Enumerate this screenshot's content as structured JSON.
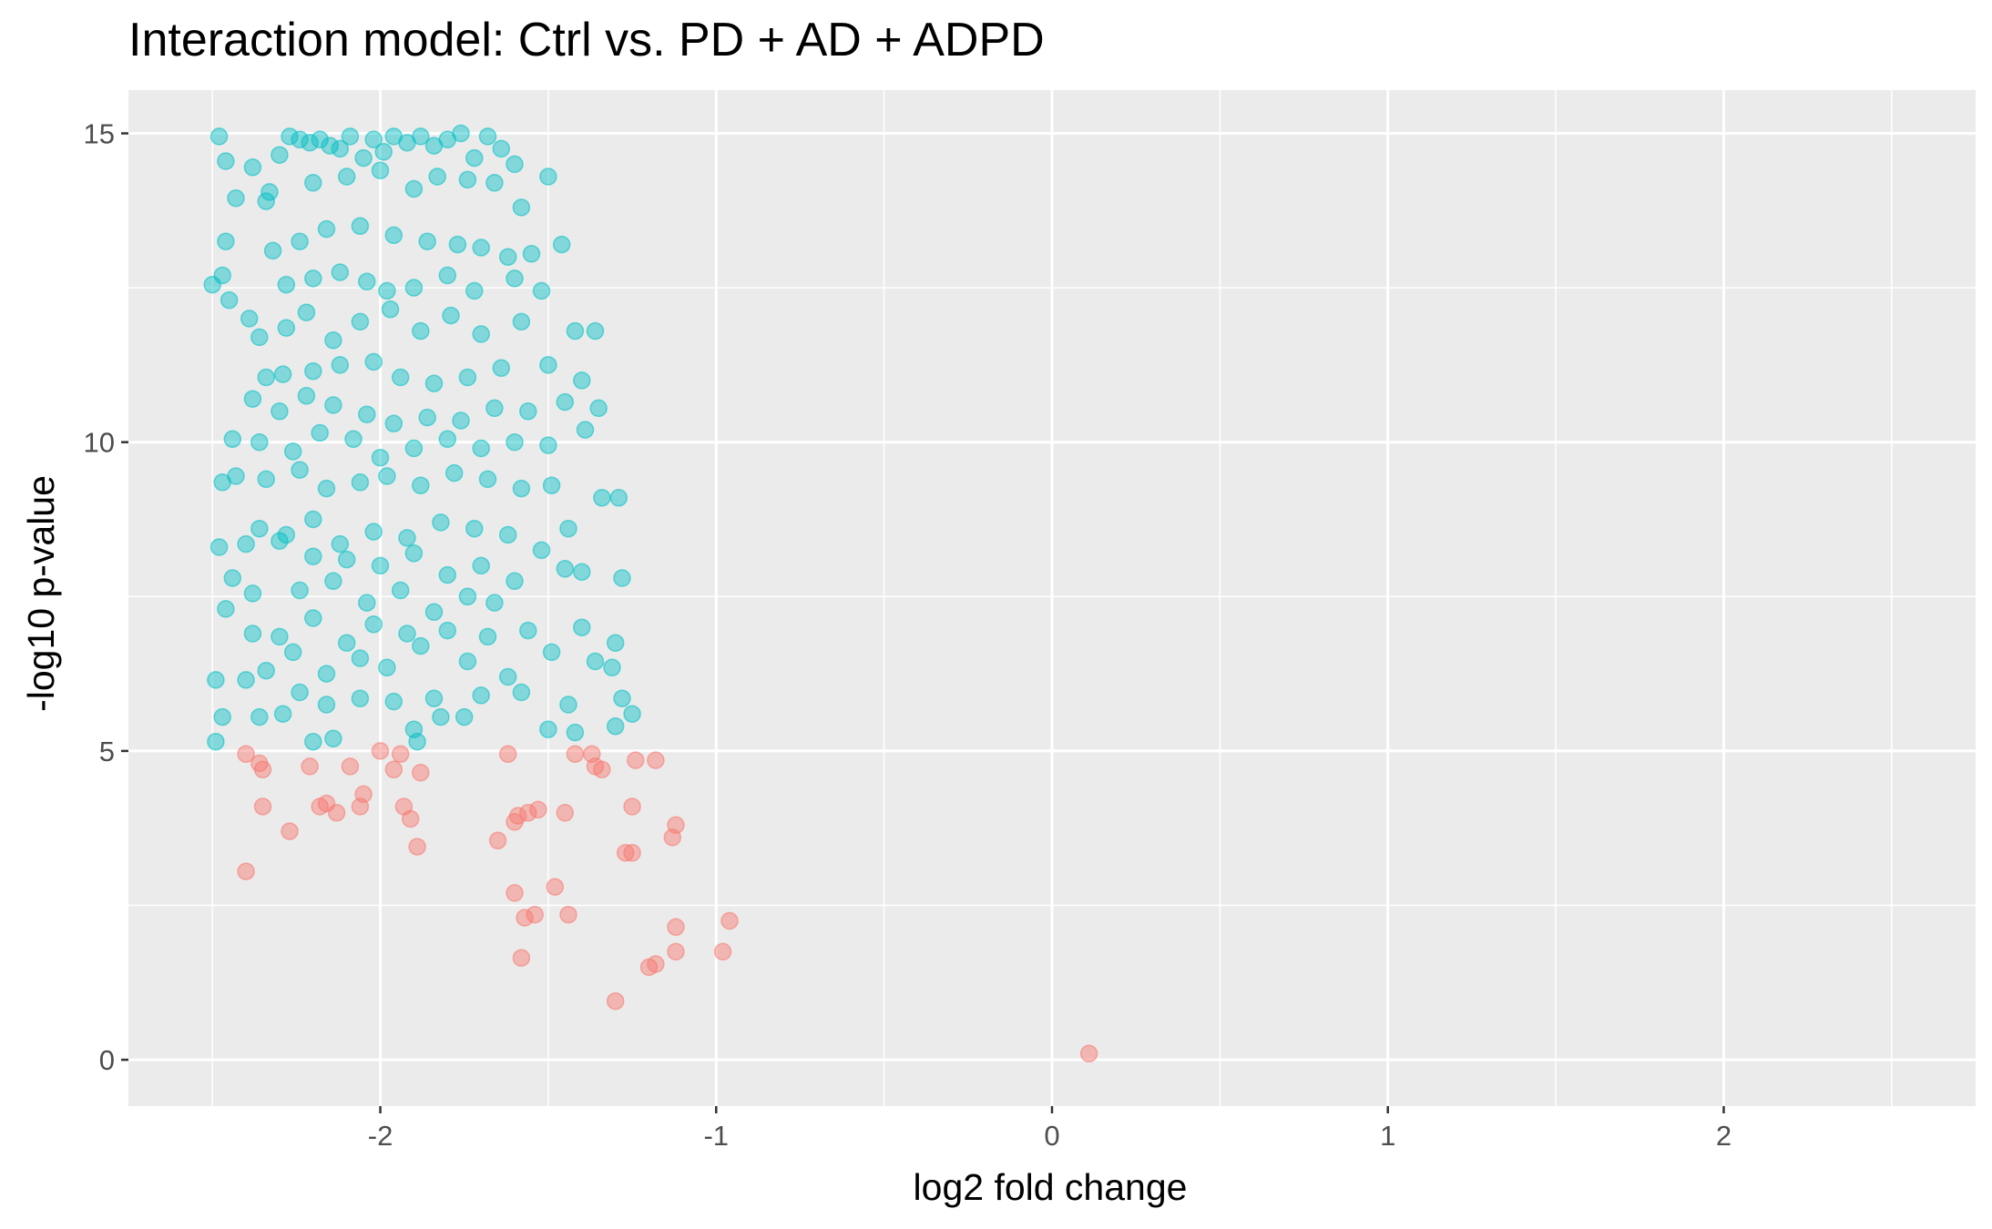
{
  "chart_data": {
    "type": "scatter",
    "title": "Interaction model: Ctrl vs. PD + AD + ADPD",
    "xlabel": "log2 fold change",
    "ylabel": "-log10 p-value",
    "xlim": [
      -2.75,
      2.75
    ],
    "ylim": [
      -0.75,
      15.7
    ],
    "x_ticks": [
      -2,
      -1,
      0,
      1,
      2
    ],
    "y_ticks": [
      0,
      5,
      10,
      15
    ],
    "x_tick_labels": [
      "-2",
      "-1",
      "0",
      "1",
      "2"
    ],
    "y_tick_labels": [
      "0",
      "5",
      "10",
      "15"
    ],
    "grid": true,
    "legend": "none",
    "colors": {
      "panel": "#ebebeb",
      "grid": "#ffffff",
      "significant": "#00bfc4",
      "not_significant": "#f8766d"
    },
    "series": [
      {
        "color": "#00bfc4",
        "points_count_estimate": 600,
        "x_range": [
          -2.5,
          -1.25
        ],
        "y_range": [
          5.1,
          15.0
        ],
        "points": [
          [
            -2.48,
            14.95
          ],
          [
            -2.46,
            14.55
          ],
          [
            -2.38,
            14.45
          ],
          [
            -2.43,
            13.95
          ],
          [
            -2.33,
            14.05
          ],
          [
            -2.34,
            13.9
          ],
          [
            -2.3,
            14.65
          ],
          [
            -2.27,
            14.95
          ],
          [
            -2.24,
            14.9
          ],
          [
            -2.21,
            14.85
          ],
          [
            -2.18,
            14.9
          ],
          [
            -2.15,
            14.8
          ],
          [
            -2.12,
            14.75
          ],
          [
            -2.09,
            14.95
          ],
          [
            -2.05,
            14.6
          ],
          [
            -2.02,
            14.9
          ],
          [
            -1.99,
            14.7
          ],
          [
            -1.96,
            14.95
          ],
          [
            -1.92,
            14.85
          ],
          [
            -1.88,
            14.95
          ],
          [
            -1.84,
            14.8
          ],
          [
            -1.8,
            14.9
          ],
          [
            -1.76,
            15.0
          ],
          [
            -1.72,
            14.6
          ],
          [
            -1.68,
            14.95
          ],
          [
            -1.64,
            14.75
          ],
          [
            -1.6,
            14.5
          ],
          [
            -1.5,
            14.3
          ],
          [
            -2.2,
            14.2
          ],
          [
            -2.1,
            14.3
          ],
          [
            -2.0,
            14.4
          ],
          [
            -1.9,
            14.1
          ],
          [
            -1.83,
            14.3
          ],
          [
            -1.74,
            14.25
          ],
          [
            -1.66,
            14.2
          ],
          [
            -1.58,
            13.8
          ],
          [
            -2.46,
            13.25
          ],
          [
            -2.32,
            13.1
          ],
          [
            -2.24,
            13.25
          ],
          [
            -2.16,
            13.45
          ],
          [
            -2.06,
            13.5
          ],
          [
            -1.96,
            13.35
          ],
          [
            -1.86,
            13.25
          ],
          [
            -1.77,
            13.2
          ],
          [
            -1.7,
            13.15
          ],
          [
            -1.62,
            13.0
          ],
          [
            -1.55,
            13.05
          ],
          [
            -1.46,
            13.2
          ],
          [
            -2.5,
            12.55
          ],
          [
            -2.47,
            12.7
          ],
          [
            -2.28,
            12.55
          ],
          [
            -2.2,
            12.65
          ],
          [
            -2.12,
            12.75
          ],
          [
            -2.04,
            12.6
          ],
          [
            -1.98,
            12.45
          ],
          [
            -1.9,
            12.5
          ],
          [
            -1.8,
            12.7
          ],
          [
            -1.72,
            12.45
          ],
          [
            -1.6,
            12.65
          ],
          [
            -1.52,
            12.45
          ],
          [
            -2.45,
            12.3
          ],
          [
            -2.39,
            12.0
          ],
          [
            -2.36,
            11.7
          ],
          [
            -2.28,
            11.85
          ],
          [
            -2.22,
            12.1
          ],
          [
            -2.14,
            11.65
          ],
          [
            -2.06,
            11.95
          ],
          [
            -1.97,
            12.15
          ],
          [
            -1.88,
            11.8
          ],
          [
            -1.79,
            12.05
          ],
          [
            -1.7,
            11.75
          ],
          [
            -1.58,
            11.95
          ],
          [
            -1.42,
            11.8
          ],
          [
            -1.36,
            11.8
          ],
          [
            -2.34,
            11.05
          ],
          [
            -2.29,
            11.1
          ],
          [
            -2.2,
            11.15
          ],
          [
            -2.12,
            11.25
          ],
          [
            -2.02,
            11.3
          ],
          [
            -1.94,
            11.05
          ],
          [
            -1.84,
            10.95
          ],
          [
            -1.74,
            11.05
          ],
          [
            -1.64,
            11.2
          ],
          [
            -1.5,
            11.25
          ],
          [
            -1.4,
            11.0
          ],
          [
            -2.38,
            10.7
          ],
          [
            -2.3,
            10.5
          ],
          [
            -2.22,
            10.75
          ],
          [
            -2.14,
            10.6
          ],
          [
            -2.04,
            10.45
          ],
          [
            -1.96,
            10.3
          ],
          [
            -1.86,
            10.4
          ],
          [
            -1.76,
            10.35
          ],
          [
            -1.66,
            10.55
          ],
          [
            -1.56,
            10.5
          ],
          [
            -1.45,
            10.65
          ],
          [
            -1.35,
            10.55
          ],
          [
            -2.44,
            10.05
          ],
          [
            -2.36,
            10.0
          ],
          [
            -2.26,
            9.85
          ],
          [
            -2.18,
            10.15
          ],
          [
            -2.08,
            10.05
          ],
          [
            -2.0,
            9.75
          ],
          [
            -1.9,
            9.9
          ],
          [
            -1.8,
            10.05
          ],
          [
            -1.7,
            9.9
          ],
          [
            -1.6,
            10.0
          ],
          [
            -1.5,
            9.95
          ],
          [
            -1.39,
            10.2
          ],
          [
            -2.47,
            9.35
          ],
          [
            -2.43,
            9.45
          ],
          [
            -2.34,
            9.4
          ],
          [
            -2.24,
            9.55
          ],
          [
            -2.16,
            9.25
          ],
          [
            -2.06,
            9.35
          ],
          [
            -1.98,
            9.45
          ],
          [
            -1.88,
            9.3
          ],
          [
            -1.78,
            9.5
          ],
          [
            -1.68,
            9.4
          ],
          [
            -1.58,
            9.25
          ],
          [
            -1.49,
            9.3
          ],
          [
            -1.34,
            9.1
          ],
          [
            -1.29,
            9.1
          ],
          [
            -2.36,
            8.6
          ],
          [
            -2.28,
            8.5
          ],
          [
            -2.2,
            8.75
          ],
          [
            -2.12,
            8.35
          ],
          [
            -2.02,
            8.55
          ],
          [
            -1.92,
            8.45
          ],
          [
            -1.82,
            8.7
          ],
          [
            -1.72,
            8.6
          ],
          [
            -1.62,
            8.5
          ],
          [
            -1.52,
            8.25
          ],
          [
            -1.44,
            8.6
          ],
          [
            -2.48,
            8.3
          ],
          [
            -2.4,
            8.35
          ],
          [
            -2.3,
            8.4
          ],
          [
            -2.2,
            8.15
          ],
          [
            -2.1,
            8.1
          ],
          [
            -2.0,
            8.0
          ],
          [
            -1.9,
            8.2
          ],
          [
            -1.8,
            7.85
          ],
          [
            -1.7,
            8.0
          ],
          [
            -1.6,
            7.75
          ],
          [
            -1.45,
            7.95
          ],
          [
            -1.4,
            7.9
          ],
          [
            -1.28,
            7.8
          ],
          [
            -2.44,
            7.8
          ],
          [
            -2.38,
            7.55
          ],
          [
            -2.24,
            7.6
          ],
          [
            -2.14,
            7.75
          ],
          [
            -2.04,
            7.4
          ],
          [
            -1.94,
            7.6
          ],
          [
            -1.84,
            7.25
          ],
          [
            -1.74,
            7.5
          ],
          [
            -1.66,
            7.4
          ],
          [
            -2.46,
            7.3
          ],
          [
            -2.38,
            6.9
          ],
          [
            -2.3,
            6.85
          ],
          [
            -2.2,
            7.15
          ],
          [
            -2.1,
            6.75
          ],
          [
            -2.02,
            7.05
          ],
          [
            -1.92,
            6.9
          ],
          [
            -1.8,
            6.95
          ],
          [
            -1.68,
            6.85
          ],
          [
            -1.56,
            6.95
          ],
          [
            -1.4,
            7.0
          ],
          [
            -1.3,
            6.75
          ],
          [
            -2.34,
            6.3
          ],
          [
            -2.26,
            6.6
          ],
          [
            -2.16,
            6.25
          ],
          [
            -2.06,
            6.5
          ],
          [
            -1.98,
            6.35
          ],
          [
            -1.88,
            6.7
          ],
          [
            -1.74,
            6.45
          ],
          [
            -1.62,
            6.2
          ],
          [
            -1.49,
            6.6
          ],
          [
            -1.36,
            6.45
          ],
          [
            -1.31,
            6.35
          ],
          [
            -2.49,
            6.15
          ],
          [
            -2.4,
            6.15
          ],
          [
            -2.24,
            5.95
          ],
          [
            -2.16,
            5.75
          ],
          [
            -2.06,
            5.85
          ],
          [
            -1.96,
            5.8
          ],
          [
            -1.84,
            5.85
          ],
          [
            -1.7,
            5.9
          ],
          [
            -1.58,
            5.95
          ],
          [
            -1.44,
            5.75
          ],
          [
            -1.28,
            5.85
          ],
          [
            -2.47,
            5.55
          ],
          [
            -2.36,
            5.55
          ],
          [
            -2.29,
            5.6
          ],
          [
            -1.9,
            5.35
          ],
          [
            -1.82,
            5.55
          ],
          [
            -1.75,
            5.55
          ],
          [
            -1.5,
            5.35
          ],
          [
            -1.3,
            5.4
          ],
          [
            -1.25,
            5.6
          ],
          [
            -2.49,
            5.15
          ],
          [
            -2.2,
            5.15
          ],
          [
            -2.14,
            5.2
          ],
          [
            -1.89,
            5.15
          ],
          [
            -1.42,
            5.3
          ]
        ]
      },
      {
        "color": "#f8766d",
        "points_count_estimate": 60,
        "x_range": [
          -2.4,
          0.11
        ],
        "y_range": [
          0.05,
          5.05
        ],
        "points": [
          [
            -2.4,
            4.95
          ],
          [
            -2.36,
            4.8
          ],
          [
            -2.35,
            4.7
          ],
          [
            -2.21,
            4.75
          ],
          [
            -2.09,
            4.75
          ],
          [
            -2.0,
            5.0
          ],
          [
            -1.96,
            4.7
          ],
          [
            -1.94,
            4.95
          ],
          [
            -1.88,
            4.65
          ],
          [
            -1.62,
            4.95
          ],
          [
            -1.42,
            4.95
          ],
          [
            -1.37,
            4.95
          ],
          [
            -1.36,
            4.75
          ],
          [
            -1.34,
            4.7
          ],
          [
            -1.24,
            4.85
          ],
          [
            -1.18,
            4.85
          ],
          [
            -2.35,
            4.1
          ],
          [
            -2.18,
            4.1
          ],
          [
            -2.16,
            4.15
          ],
          [
            -2.13,
            4.0
          ],
          [
            -2.06,
            4.1
          ],
          [
            -2.05,
            4.3
          ],
          [
            -1.93,
            4.1
          ],
          [
            -1.91,
            3.9
          ],
          [
            -1.6,
            3.85
          ],
          [
            -1.59,
            3.95
          ],
          [
            -1.56,
            4.0
          ],
          [
            -1.53,
            4.05
          ],
          [
            -1.45,
            4.0
          ],
          [
            -1.25,
            4.1
          ],
          [
            -1.12,
            3.8
          ],
          [
            -2.27,
            3.7
          ],
          [
            -1.89,
            3.45
          ],
          [
            -1.65,
            3.55
          ],
          [
            -1.27,
            3.35
          ],
          [
            -1.25,
            3.35
          ],
          [
            -1.13,
            3.6
          ],
          [
            -2.4,
            3.05
          ],
          [
            -1.6,
            2.7
          ],
          [
            -1.48,
            2.8
          ],
          [
            -1.57,
            2.3
          ],
          [
            -1.54,
            2.35
          ],
          [
            -1.44,
            2.35
          ],
          [
            -1.12,
            2.15
          ],
          [
            -0.96,
            2.25
          ],
          [
            -1.58,
            1.65
          ],
          [
            -1.2,
            1.5
          ],
          [
            -1.18,
            1.55
          ],
          [
            -1.12,
            1.75
          ],
          [
            -0.98,
            1.75
          ],
          [
            -1.3,
            0.95
          ],
          [
            0.11,
            0.1
          ]
        ]
      }
    ]
  }
}
